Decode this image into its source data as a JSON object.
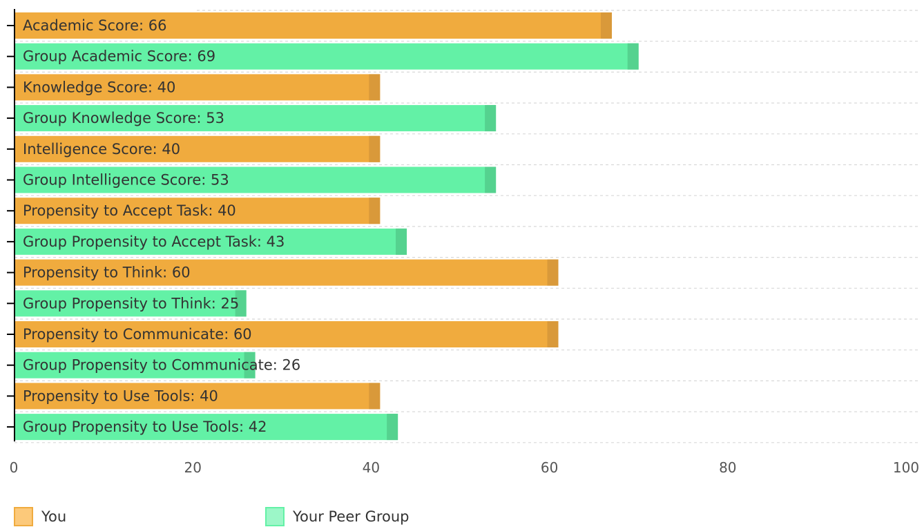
{
  "colors": {
    "you": "#f0ab3e",
    "you_cap": "#d9993a",
    "you_legend": "#fcc97a",
    "group": "#63f1a6",
    "group_cap": "#55d28f",
    "group_legend": "#9cf7c8",
    "grid": "#d8d8d8",
    "axis": "#000000"
  },
  "chart_data": {
    "type": "bar",
    "orientation": "horizontal",
    "xlim": [
      0,
      100
    ],
    "x_ticks": [
      "0",
      "20",
      "40",
      "60",
      "80",
      "100"
    ],
    "grid": "dashed horizontal",
    "legend_position": "bottom",
    "series": [
      {
        "name": "You",
        "color_key": "you"
      },
      {
        "name": "Your Peer Group",
        "color_key": "group"
      }
    ],
    "bars": [
      {
        "label": "Academic Score: 66",
        "value": 67,
        "series": "You"
      },
      {
        "label": "Group Academic Score: 69",
        "value": 70,
        "series": "Your Peer Group"
      },
      {
        "label": "Knowledge Score: 40",
        "value": 41,
        "series": "You"
      },
      {
        "label": "Group Knowledge Score: 53",
        "value": 54,
        "series": "Your Peer Group"
      },
      {
        "label": "Intelligence Score: 40",
        "value": 41,
        "series": "You"
      },
      {
        "label": "Group Intelligence Score: 53",
        "value": 54,
        "series": "Your Peer Group"
      },
      {
        "label": "Propensity to Accept Task: 40",
        "value": 41,
        "series": "You"
      },
      {
        "label": "Group Propensity to Accept Task: 43",
        "value": 44,
        "series": "Your Peer Group"
      },
      {
        "label": "Propensity to Think: 60",
        "value": 61,
        "series": "You"
      },
      {
        "label": "Group Propensity to Think: 25",
        "value": 26,
        "series": "Your Peer Group"
      },
      {
        "label": "Propensity to Communicate: 60",
        "value": 61,
        "series": "You"
      },
      {
        "label": "Group Propensity to Communicate: 26",
        "value": 27,
        "series": "Your Peer Group"
      },
      {
        "label": "Propensity to Use Tools: 40",
        "value": 41,
        "series": "You"
      },
      {
        "label": "Group Propensity to Use Tools: 42",
        "value": 43,
        "series": "Your Peer Group"
      }
    ]
  },
  "legend": {
    "you_label": "You",
    "group_label": "Your Peer Group"
  }
}
